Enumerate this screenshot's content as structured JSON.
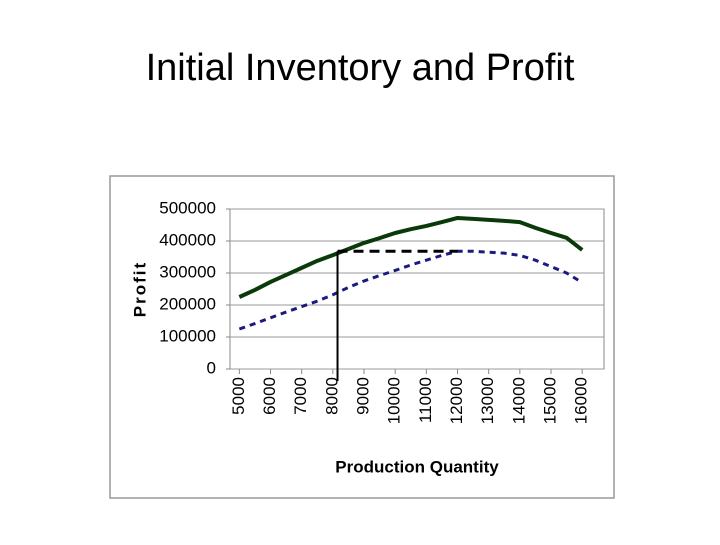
{
  "chart_data": {
    "type": "line",
    "title": "Initial Inventory and Profit",
    "x_label": "Production Quantity",
    "y_label": "Profit",
    "x": [
      5000,
      5500,
      6000,
      6500,
      7000,
      7500,
      8000,
      8500,
      9000,
      9500,
      10000,
      10500,
      11000,
      11500,
      12000,
      12500,
      13000,
      13500,
      14000,
      14500,
      15000,
      15500,
      16000
    ],
    "series": [
      {
        "color": "#0a3a0a",
        "dash": "solid",
        "values": [
          225000,
          247000,
          272000,
          294000,
          316000,
          338000,
          356000,
          375000,
          394000,
          409000,
          425000,
          437000,
          447000,
          459000,
          472000,
          469000,
          466000,
          463000,
          459000,
          441000,
          425000,
          410000,
          372000
        ]
      },
      {
        "color": "#1a1a80",
        "dash": "dashed",
        "values": [
          125000,
          142000,
          160000,
          178000,
          195000,
          212000,
          232000,
          255000,
          275000,
          292000,
          308000,
          325000,
          340000,
          355000,
          368000,
          368000,
          365000,
          362000,
          355000,
          340000,
          320000,
          300000,
          270000
        ]
      }
    ],
    "reference_x": 8150,
    "reference_y": 368000,
    "reference_x_end": 12000,
    "xlim": [
      4700,
      16700
    ],
    "xticks": [
      5000,
      6000,
      7000,
      8000,
      9000,
      10000,
      11000,
      12000,
      13000,
      14000,
      15000,
      16000
    ],
    "ylim": [
      0,
      500000
    ],
    "yticks": [
      0,
      100000,
      200000,
      300000,
      400000,
      500000
    ],
    "grid": true
  }
}
